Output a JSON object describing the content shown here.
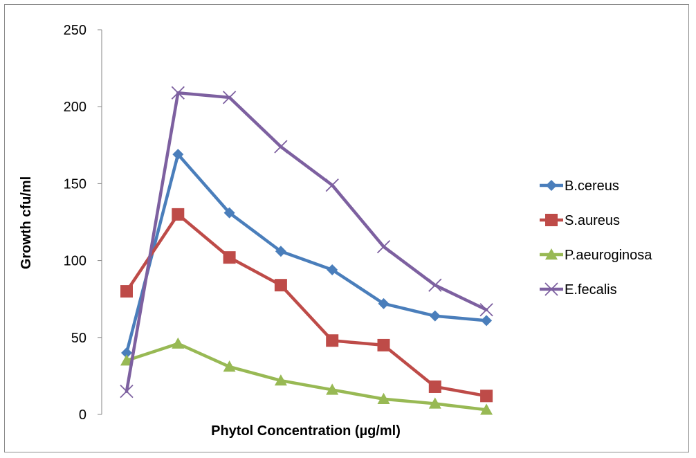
{
  "chart_data": {
    "type": "line",
    "title": "",
    "xlabel": "Phytol Concentration (µg/ml)",
    "ylabel": "Growth cfu/ml",
    "ylim": [
      0,
      250
    ],
    "yticks": [
      0,
      50,
      100,
      150,
      200,
      250
    ],
    "x": [
      1,
      2,
      3,
      4,
      5,
      6,
      7,
      8
    ],
    "grid": false,
    "legend_position": "right",
    "series": [
      {
        "name": "B.cereus",
        "color": "#4a7ebb",
        "marker": "diamond",
        "values": [
          40,
          169,
          131,
          106,
          94,
          72,
          64,
          61
        ]
      },
      {
        "name": "S.aureus",
        "color": "#be4b48",
        "marker": "square",
        "values": [
          80,
          130,
          102,
          84,
          48,
          45,
          18,
          12
        ]
      },
      {
        "name": "P.aeuroginosa",
        "color": "#98b954",
        "marker": "triangle",
        "values": [
          35,
          46,
          31,
          22,
          16,
          10,
          7,
          3
        ]
      },
      {
        "name": "E.fecalis",
        "color": "#7d60a0",
        "marker": "x",
        "values": [
          15,
          209,
          206,
          174,
          149,
          109,
          84,
          68
        ]
      }
    ]
  }
}
